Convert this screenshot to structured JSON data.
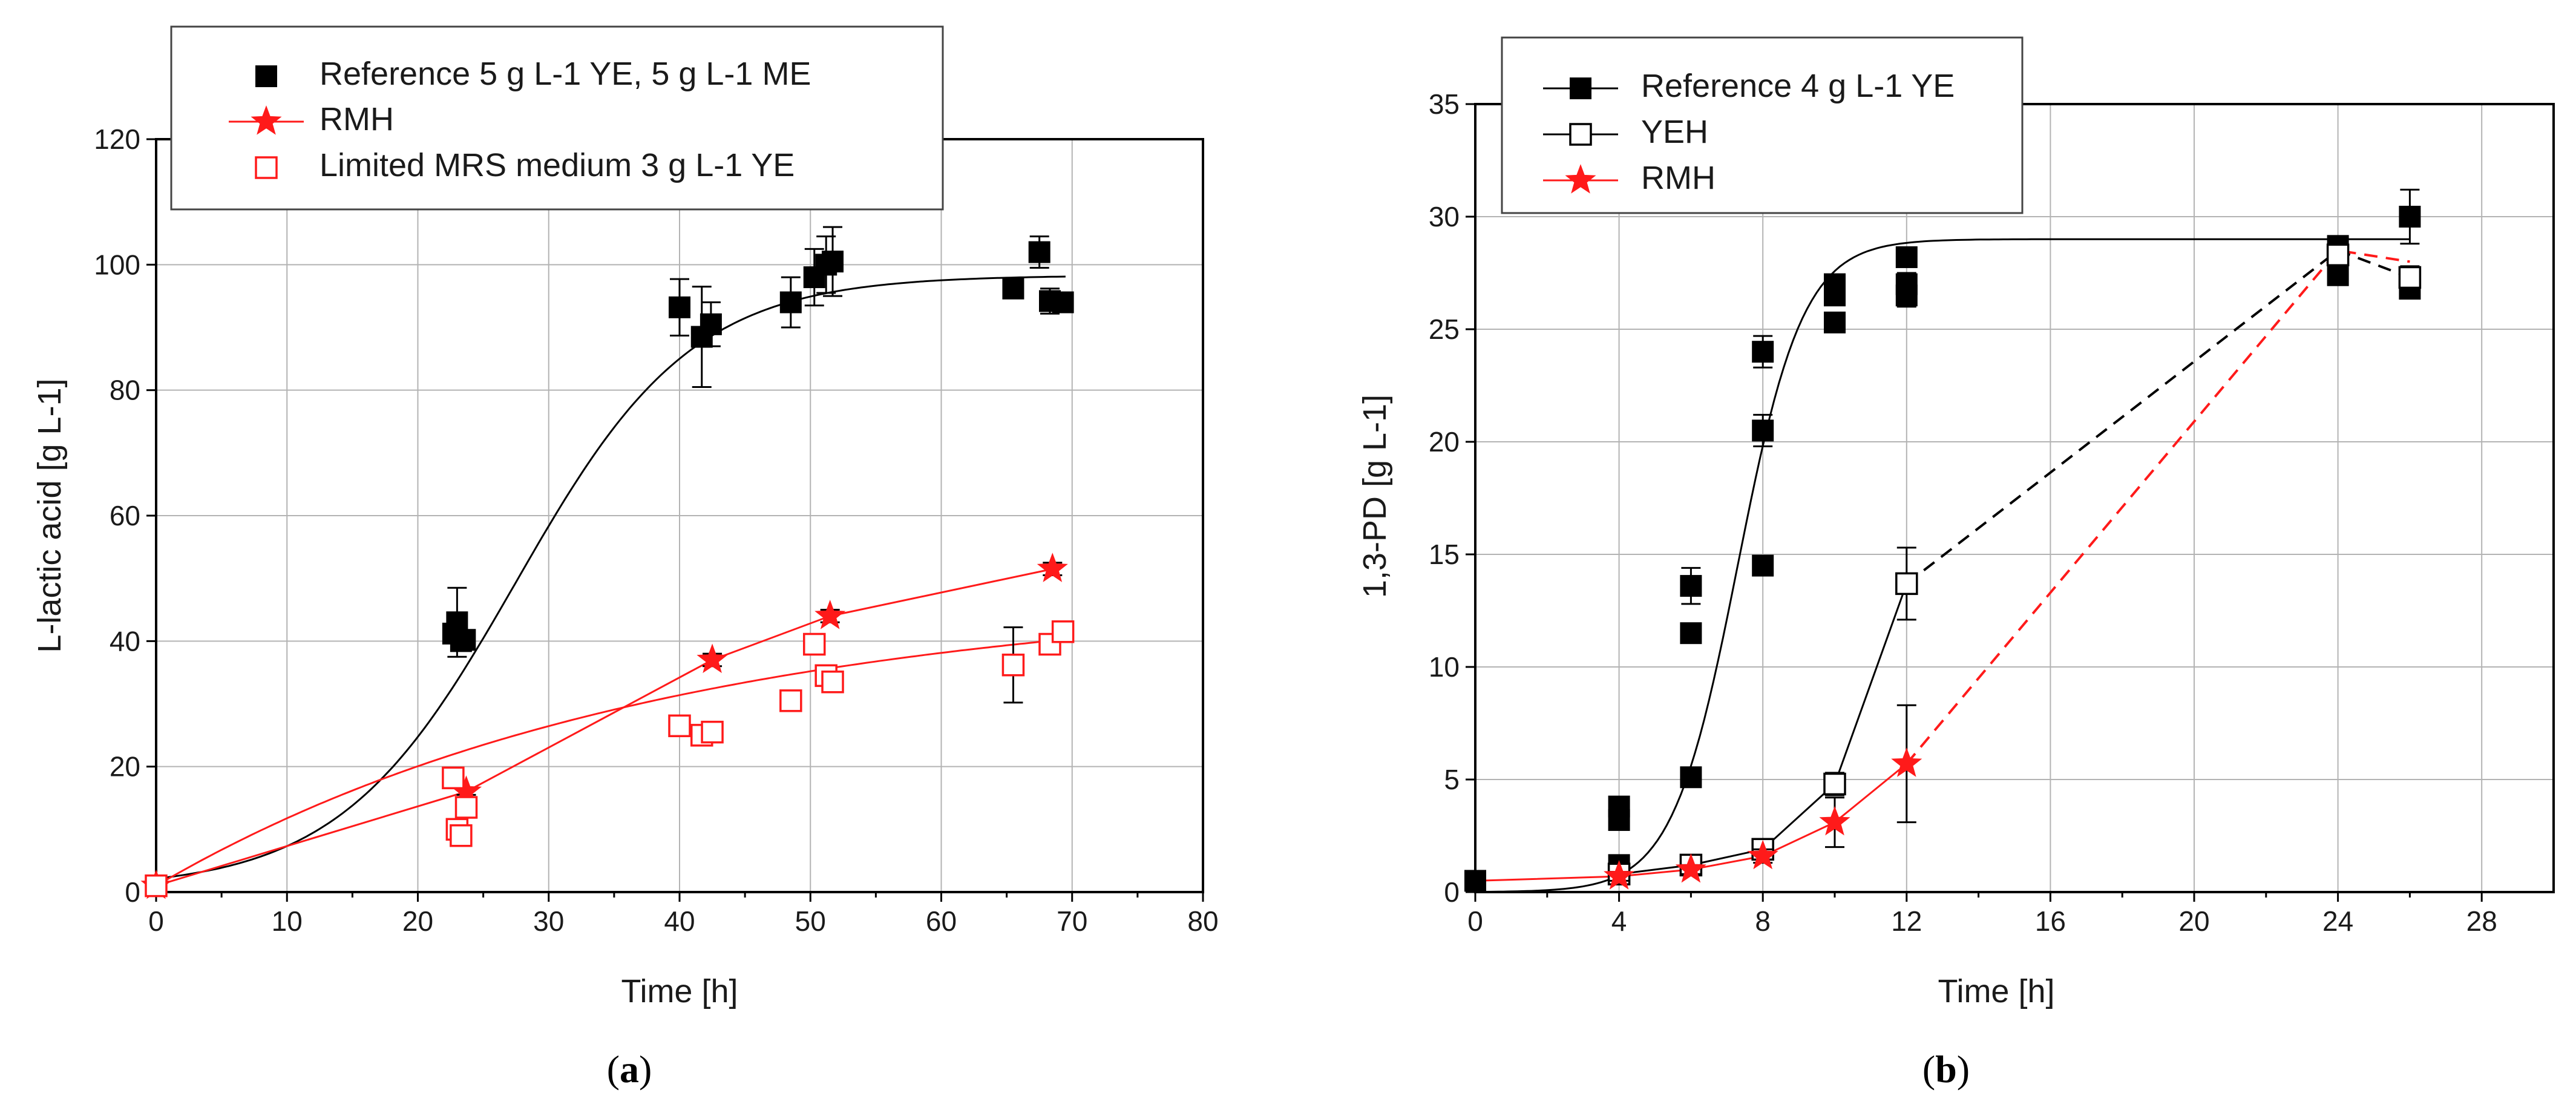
{
  "colors": {
    "black": "#000000",
    "red": "#ff1a1a",
    "grid": "#b3b3b3"
  },
  "chart_data": [
    {
      "id": "a",
      "type": "scatter",
      "caption": "a",
      "xlabel": "Time [h]",
      "ylabel": "L-lactic acid [g L-1]",
      "xlim": [
        0,
        80
      ],
      "ylim": [
        0,
        120
      ],
      "xticks": [
        0,
        10,
        20,
        30,
        40,
        50,
        60,
        70,
        80
      ],
      "yticks": [
        0,
        20,
        40,
        60,
        80,
        100,
        120
      ],
      "legend_position": "top-left",
      "series": [
        {
          "name": "Reference 5 g L-1 YE, 5 g L-1 ME",
          "marker": "filled-square",
          "color": "#000000",
          "connect": "none",
          "points": [
            {
              "x": 22.7,
              "y": 41.2,
              "err": 1.0
            },
            {
              "x": 23.0,
              "y": 43.0,
              "err": 5.5
            },
            {
              "x": 23.3,
              "y": 40.0,
              "err": 1.0
            },
            {
              "x": 23.6,
              "y": 40.2,
              "err": 1.0
            },
            {
              "x": 40.0,
              "y": 93.2,
              "err": 4.5
            },
            {
              "x": 41.7,
              "y": 88.5,
              "err": 8.0
            },
            {
              "x": 42.4,
              "y": 90.5,
              "err": 3.5
            },
            {
              "x": 48.5,
              "y": 94.0,
              "err": 4.0
            },
            {
              "x": 50.3,
              "y": 98.0,
              "err": 4.5
            },
            {
              "x": 51.2,
              "y": 100.0,
              "err": 4.5
            },
            {
              "x": 51.7,
              "y": 100.5,
              "err": 5.5
            },
            {
              "x": 65.5,
              "y": 96.2,
              "err": 1.0
            },
            {
              "x": 67.5,
              "y": 102.0,
              "err": 2.5
            },
            {
              "x": 68.3,
              "y": 94.2,
              "err": 2.0
            },
            {
              "x": 69.3,
              "y": 94.0,
              "err": 1.5
            }
          ]
        },
        {
          "name": "RMH",
          "marker": "star",
          "color": "#ff1a1a",
          "connect": "line",
          "points": [
            {
              "x": 0,
              "y": 1.0,
              "err": 0
            },
            {
              "x": 23.7,
              "y": 16.0,
              "err": 0.5
            },
            {
              "x": 42.5,
              "y": 37.0,
              "err": 1.0
            },
            {
              "x": 51.5,
              "y": 44.0,
              "err": 1.0
            },
            {
              "x": 68.5,
              "y": 51.5,
              "err": 1.0
            }
          ]
        },
        {
          "name": "Limited MRS medium 3 g L-1 YE",
          "marker": "open-square",
          "color": "#ff1a1a",
          "connect": "none",
          "points": [
            {
              "x": 0,
              "y": 1.0,
              "err": 0
            },
            {
              "x": 22.7,
              "y": 18.2,
              "err": 1.0
            },
            {
              "x": 23.0,
              "y": 10.0,
              "err": 1.0
            },
            {
              "x": 23.3,
              "y": 9.0,
              "err": 1.0
            },
            {
              "x": 23.7,
              "y": 13.5,
              "err": 1.5
            },
            {
              "x": 40.0,
              "y": 26.5,
              "err": 1.0
            },
            {
              "x": 41.7,
              "y": 25.0,
              "err": 1.0
            },
            {
              "x": 42.5,
              "y": 25.5,
              "err": 1.5
            },
            {
              "x": 48.5,
              "y": 30.5,
              "err": 1.5
            },
            {
              "x": 50.3,
              "y": 39.5,
              "err": 1.5
            },
            {
              "x": 51.2,
              "y": 34.5,
              "err": 1.5
            },
            {
              "x": 51.7,
              "y": 33.5,
              "err": 1.0
            },
            {
              "x": 65.5,
              "y": 36.2,
              "err": 6.0
            },
            {
              "x": 68.3,
              "y": 39.5,
              "err": 1.5
            },
            {
              "x": 69.3,
              "y": 41.5,
              "err": 1.0
            }
          ]
        }
      ],
      "fit_curves": [
        {
          "series": "Reference 5 g L-1 YE, 5 g L-1 ME",
          "color": "#000000",
          "model": "logistic",
          "y0": 0.5,
          "ymax": 98.3,
          "rate": 0.148,
          "t_mid": 27.5,
          "from": 0,
          "to": 69.5
        },
        {
          "series": "Limited MRS medium 3 g L-1 YE",
          "color": "#ff1a1a",
          "model": "saturation",
          "y0": 1.0,
          "ymax": 48.0,
          "rate": 0.026,
          "from": 0,
          "to": 69.5
        }
      ]
    },
    {
      "id": "b",
      "type": "scatter",
      "caption": "b",
      "xlabel": "Time [h]",
      "ylabel": "1,3-PD [g L-1]",
      "xlim": [
        0,
        30
      ],
      "ylim": [
        0,
        35
      ],
      "xticks": [
        0,
        4,
        8,
        12,
        16,
        20,
        24,
        28
      ],
      "yticks": [
        0,
        5,
        10,
        15,
        20,
        25,
        30,
        35
      ],
      "legend_position": "top-left",
      "series": [
        {
          "name": "Reference 4 g L-1 YE",
          "marker": "filled-square",
          "color": "#000000",
          "connect": "none",
          "points": [
            {
              "x": 0,
              "y": 0.5,
              "err": 0
            },
            {
              "x": 4,
              "y": 1.2,
              "err": 0.3
            },
            {
              "x": 4,
              "y": 3.2,
              "err": 0.3
            },
            {
              "x": 4,
              "y": 3.8,
              "err": 0.3
            },
            {
              "x": 6,
              "y": 5.1,
              "err": 0.3
            },
            {
              "x": 6,
              "y": 11.5,
              "err": 0.3
            },
            {
              "x": 6,
              "y": 13.6,
              "err": 0.8
            },
            {
              "x": 8,
              "y": 14.5,
              "err": 0.3
            },
            {
              "x": 8,
              "y": 20.5,
              "err": 0.7
            },
            {
              "x": 8,
              "y": 24.0,
              "err": 0.7
            },
            {
              "x": 10,
              "y": 25.3,
              "err": 0.3
            },
            {
              "x": 10,
              "y": 26.5,
              "err": 0.3
            },
            {
              "x": 10,
              "y": 27.0,
              "err": 0.3
            },
            {
              "x": 12,
              "y": 26.5,
              "err": 0.5
            },
            {
              "x": 12,
              "y": 27.0,
              "err": 0.5
            },
            {
              "x": 12,
              "y": 28.2,
              "err": 0.3
            },
            {
              "x": 24,
              "y": 27.4,
              "err": 0.3
            },
            {
              "x": 24,
              "y": 28.7,
              "err": 0.3
            },
            {
              "x": 26,
              "y": 26.8,
              "err": 0.3
            },
            {
              "x": 26,
              "y": 30.0,
              "err": 1.2
            }
          ]
        },
        {
          "name": "YEH",
          "marker": "open-square",
          "color": "#000000",
          "connect": "none",
          "points": [
            {
              "x": 4,
              "y": 0.8,
              "err": 0.2
            },
            {
              "x": 6,
              "y": 1.2,
              "err": 0.2
            },
            {
              "x": 8,
              "y": 1.9,
              "err": 0.3
            },
            {
              "x": 10,
              "y": 4.8,
              "err": 0.5
            },
            {
              "x": 12,
              "y": 13.7,
              "err": 1.6
            },
            {
              "x": 24,
              "y": 28.3,
              "err": 0.3
            },
            {
              "x": 26,
              "y": 27.3,
              "err": 0.5
            }
          ]
        },
        {
          "name": "RMH",
          "marker": "star",
          "color": "#ff1a1a",
          "connect": "line",
          "points": [
            {
              "x": 4,
              "y": 0.7,
              "err": 0.2
            },
            {
              "x": 6,
              "y": 1.0,
              "err": 0.2
            },
            {
              "x": 8,
              "y": 1.6,
              "err": 0.3
            },
            {
              "x": 10,
              "y": 3.1,
              "err": 1.1
            },
            {
              "x": 12,
              "y": 5.7,
              "err": 2.6
            }
          ]
        }
      ],
      "fit_curves": [
        {
          "series": "Reference 4 g L-1 YE",
          "color": "#000000",
          "model": "logistic",
          "y0": 0,
          "ymax": 29.0,
          "rate": 1.1,
          "t_mid": 7.3,
          "from": 0,
          "to": 26
        },
        {
          "series": "YEH",
          "color": "#000000",
          "model": "polyline",
          "points": [
            [
              4,
              0.8
            ],
            [
              6,
              1.2
            ],
            [
              8,
              1.9
            ],
            [
              10,
              4.8
            ],
            [
              12,
              13.7
            ]
          ]
        },
        {
          "series": "RMH",
          "color": "#ff1a1a",
          "model": "polyline",
          "points": [
            [
              0,
              0.5
            ],
            [
              4,
              0.7
            ],
            [
              6,
              1.0
            ],
            [
              8,
              1.6
            ],
            [
              10,
              3.1
            ],
            [
              12,
              5.7
            ]
          ]
        }
      ],
      "dashed_segments": [
        {
          "color": "#000000",
          "points": [
            [
              12,
              13.7
            ],
            [
              24,
              28.5
            ],
            [
              26,
              27.3
            ]
          ]
        },
        {
          "color": "#ff1a1a",
          "points": [
            [
              12,
              5.7
            ],
            [
              24,
              28.5
            ],
            [
              26,
              28.0
            ]
          ]
        }
      ]
    }
  ]
}
